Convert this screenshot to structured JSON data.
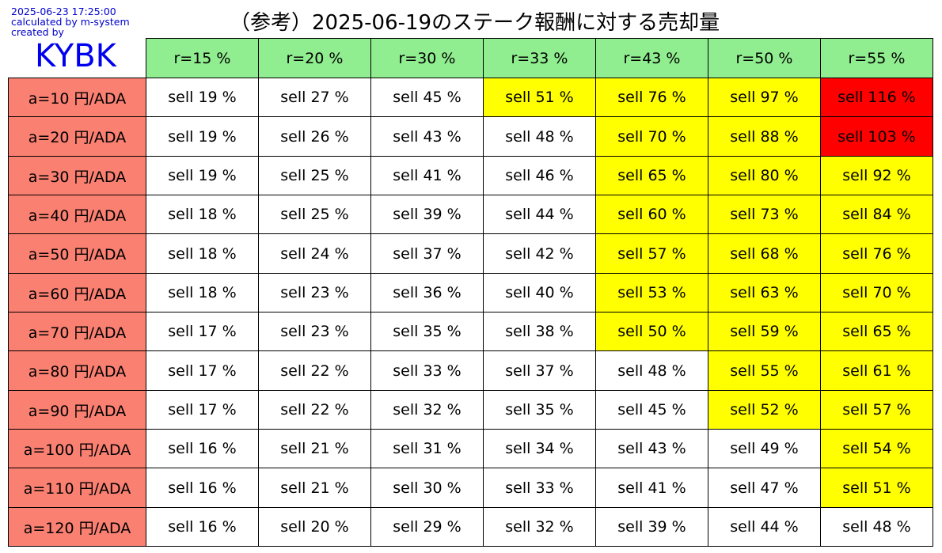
{
  "meta": {
    "timestamp": "2025-06-23 17:25:00",
    "calculated_by": "calculated by m-system",
    "created_by": "created by",
    "logo": "KYBK"
  },
  "title": "（参考）2025-06-19のステーク報酬に対する売却量",
  "colors": {
    "header": "#90ee90",
    "row_header": "#fa8072",
    "normal": "#ffffff",
    "warn": "#ffff00",
    "over": "#ff0000"
  },
  "chart_data": {
    "type": "table",
    "title": "（参考）2025-06-19のステーク報酬に対する売却量",
    "columns": [
      "r=15 %",
      "r=20 %",
      "r=30 %",
      "r=33 %",
      "r=43 %",
      "r=50 %",
      "r=55 %"
    ],
    "rows": [
      {
        "label": "a=10 円/ADA",
        "values": [
          19,
          27,
          45,
          51,
          76,
          97,
          116
        ],
        "levels": [
          "w",
          "w",
          "w",
          "y",
          "y",
          "y",
          "r"
        ]
      },
      {
        "label": "a=20 円/ADA",
        "values": [
          19,
          26,
          43,
          48,
          70,
          88,
          103
        ],
        "levels": [
          "w",
          "w",
          "w",
          "w",
          "y",
          "y",
          "r"
        ]
      },
      {
        "label": "a=30 円/ADA",
        "values": [
          19,
          25,
          41,
          46,
          65,
          80,
          92
        ],
        "levels": [
          "w",
          "w",
          "w",
          "w",
          "y",
          "y",
          "y"
        ]
      },
      {
        "label": "a=40 円/ADA",
        "values": [
          18,
          25,
          39,
          44,
          60,
          73,
          84
        ],
        "levels": [
          "w",
          "w",
          "w",
          "w",
          "y",
          "y",
          "y"
        ]
      },
      {
        "label": "a=50 円/ADA",
        "values": [
          18,
          24,
          37,
          42,
          57,
          68,
          76
        ],
        "levels": [
          "w",
          "w",
          "w",
          "w",
          "y",
          "y",
          "y"
        ]
      },
      {
        "label": "a=60 円/ADA",
        "values": [
          18,
          23,
          36,
          40,
          53,
          63,
          70
        ],
        "levels": [
          "w",
          "w",
          "w",
          "w",
          "y",
          "y",
          "y"
        ]
      },
      {
        "label": "a=70 円/ADA",
        "values": [
          17,
          23,
          35,
          38,
          50,
          59,
          65
        ],
        "levels": [
          "w",
          "w",
          "w",
          "w",
          "y",
          "y",
          "y"
        ]
      },
      {
        "label": "a=80 円/ADA",
        "values": [
          17,
          22,
          33,
          37,
          48,
          55,
          61
        ],
        "levels": [
          "w",
          "w",
          "w",
          "w",
          "w",
          "y",
          "y"
        ]
      },
      {
        "label": "a=90 円/ADA",
        "values": [
          17,
          22,
          32,
          35,
          45,
          52,
          57
        ],
        "levels": [
          "w",
          "w",
          "w",
          "w",
          "w",
          "y",
          "y"
        ]
      },
      {
        "label": "a=100 円/ADA",
        "values": [
          16,
          21,
          31,
          34,
          43,
          49,
          54
        ],
        "levels": [
          "w",
          "w",
          "w",
          "w",
          "w",
          "w",
          "y"
        ]
      },
      {
        "label": "a=110 円/ADA",
        "values": [
          16,
          21,
          30,
          33,
          41,
          47,
          51
        ],
        "levels": [
          "w",
          "w",
          "w",
          "w",
          "w",
          "w",
          "y"
        ]
      },
      {
        "label": "a=120 円/ADA",
        "values": [
          16,
          20,
          29,
          32,
          39,
          44,
          48
        ],
        "levels": [
          "w",
          "w",
          "w",
          "w",
          "w",
          "w",
          "w"
        ]
      }
    ],
    "cell_prefix": "sell",
    "cell_unit": "%"
  }
}
